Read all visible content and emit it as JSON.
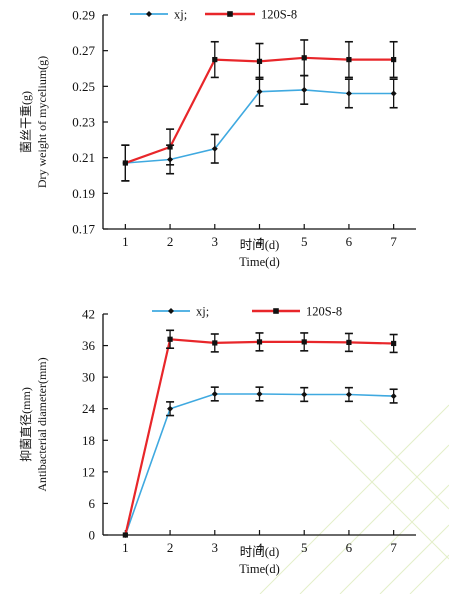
{
  "colors": {
    "xj": "#3fa9e0",
    "s120": "#e8262a",
    "axis": "#111111",
    "error": "#111111",
    "background_lines": "#e3efc9"
  },
  "chart_data": [
    {
      "type": "line",
      "title": "",
      "xlabel_cn": "时间(d)",
      "xlabel_en": "Time(d)",
      "ylabel_cn": "菌丝干重(g)",
      "ylabel_en": "Dry weight of mycelium(g)",
      "x": [
        1,
        2,
        3,
        4,
        5,
        6,
        7
      ],
      "xlim": [
        0.5,
        7.5
      ],
      "ylim": [
        0.17,
        0.29
      ],
      "yticks": [
        0.17,
        0.19,
        0.21,
        0.23,
        0.25,
        0.27,
        0.29
      ],
      "ytick_labels": [
        "0.17",
        "0.19",
        "0.21",
        "0.23",
        "0.25",
        "0.27",
        "0.29"
      ],
      "xtick_labels": [
        "1",
        "2",
        "3",
        "4",
        "5",
        "6",
        "7"
      ],
      "grid": false,
      "legend_position": "top",
      "series": [
        {
          "name": "xj;",
          "color_key": "xj",
          "marker": "diamond",
          "values": [
            0.207,
            0.209,
            0.215,
            0.247,
            0.248,
            0.246,
            0.246
          ],
          "errors": [
            0.01,
            0.008,
            0.008,
            0.008,
            0.008,
            0.008,
            0.008
          ]
        },
        {
          "name": "120S-8",
          "color_key": "s120",
          "marker": "square",
          "values": [
            0.207,
            0.216,
            0.265,
            0.264,
            0.266,
            0.265,
            0.265
          ],
          "errors": [
            0.01,
            0.01,
            0.01,
            0.01,
            0.01,
            0.01,
            0.01
          ]
        }
      ]
    },
    {
      "type": "line",
      "title": "",
      "xlabel_cn": "时间(d)",
      "xlabel_en": "Time(d)",
      "ylabel_cn": "抑菌直径(mm)",
      "ylabel_en": "Antibacterial diameter(mm)",
      "x": [
        1,
        2,
        3,
        4,
        5,
        6,
        7
      ],
      "xlim": [
        0.5,
        7.5
      ],
      "ylim": [
        0,
        42
      ],
      "yticks": [
        0,
        6,
        12,
        18,
        24,
        30,
        36,
        42
      ],
      "ytick_labels": [
        "0",
        "6",
        "12",
        "18",
        "24",
        "30",
        "36",
        "42"
      ],
      "xtick_labels": [
        "1",
        "2",
        "3",
        "4",
        "5",
        "6",
        "7"
      ],
      "grid": false,
      "legend_position": "top",
      "series": [
        {
          "name": "xj;",
          "color_key": "xj",
          "marker": "diamond",
          "values": [
            0,
            24.0,
            26.8,
            26.8,
            26.7,
            26.7,
            26.4
          ],
          "errors": [
            0,
            1.3,
            1.3,
            1.3,
            1.3,
            1.3,
            1.3
          ]
        },
        {
          "name": "120S-8",
          "color_key": "s120",
          "marker": "square",
          "values": [
            0,
            37.2,
            36.5,
            36.7,
            36.7,
            36.6,
            36.4
          ],
          "errors": [
            0,
            1.7,
            1.7,
            1.7,
            1.7,
            1.7,
            1.7
          ]
        }
      ]
    }
  ]
}
